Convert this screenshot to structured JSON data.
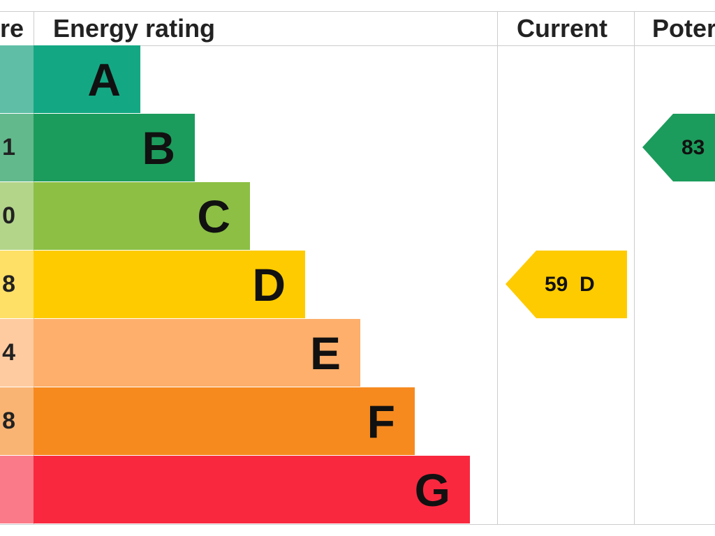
{
  "header": {
    "score": "re",
    "energy_rating": "Energy rating",
    "current": "Current",
    "potential": "Poter"
  },
  "rows": [
    {
      "score": "",
      "band": "A"
    },
    {
      "score": "1",
      "band": "B"
    },
    {
      "score": "0",
      "band": "C"
    },
    {
      "score": "8",
      "band": "D"
    },
    {
      "score": "4",
      "band": "E"
    },
    {
      "score": "8",
      "band": "F"
    },
    {
      "score": "",
      "band": "G"
    }
  ],
  "current": {
    "label": "59  D"
  },
  "potential": {
    "label": "83"
  }
}
